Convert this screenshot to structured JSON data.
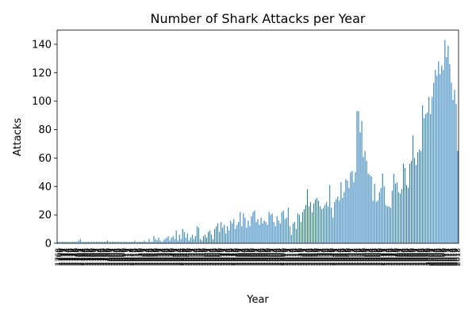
{
  "chart_data": {
    "type": "bar",
    "title": "Number of Shark Attacks per Year",
    "x_label": "Year",
    "y_label": "Attacks",
    "categories": [
      1768,
      1769,
      1770,
      1771,
      1772,
      1773,
      1774,
      1775,
      1776,
      1777,
      1778,
      1779,
      1780,
      1781,
      1782,
      1783,
      1784,
      1785,
      1786,
      1787,
      1788,
      1789,
      1790,
      1791,
      1792,
      1793,
      1794,
      1795,
      1796,
      1797,
      1798,
      1799,
      1800,
      1801,
      1802,
      1803,
      1804,
      1805,
      1806,
      1807,
      1808,
      1809,
      1810,
      1811,
      1812,
      1813,
      1814,
      1815,
      1816,
      1817,
      1818,
      1819,
      1820,
      1821,
      1822,
      1823,
      1824,
      1825,
      1826,
      1827,
      1828,
      1829,
      1830,
      1831,
      1832,
      1833,
      1834,
      1835,
      1836,
      1837,
      1838,
      1839,
      1840,
      1841,
      1842,
      1843,
      1844,
      1845,
      1846,
      1847,
      1848,
      1849,
      1850,
      1851,
      1852,
      1853,
      1854,
      1855,
      1856,
      1857,
      1858,
      1859,
      1860,
      1861,
      1862,
      1863,
      1864,
      1865,
      1866,
      1867,
      1868,
      1869,
      1870,
      1871,
      1872,
      1873,
      1874,
      1875,
      1876,
      1877,
      1878,
      1879,
      1880,
      1881,
      1882,
      1883,
      1884,
      1885,
      1886,
      1887,
      1888,
      1889,
      1890,
      1891,
      1892,
      1893,
      1894,
      1895,
      1896,
      1897,
      1898,
      1899,
      1900,
      1901,
      1902,
      1903,
      1904,
      1905,
      1906,
      1907,
      1908,
      1909,
      1910,
      1911,
      1912,
      1913,
      1914,
      1915,
      1916,
      1917,
      1918,
      1919,
      1920,
      1921,
      1922,
      1923,
      1924,
      1925,
      1926,
      1927,
      1928,
      1929,
      1930,
      1931,
      1932,
      1933,
      1934,
      1935,
      1936,
      1937,
      1938,
      1939,
      1940,
      1941,
      1942,
      1943,
      1944,
      1945,
      1946,
      1947,
      1948,
      1949,
      1950,
      1951,
      1952,
      1953,
      1954,
      1955,
      1956,
      1957,
      1958,
      1959,
      1960,
      1961,
      1962,
      1963,
      1964,
      1965,
      1966,
      1967,
      1968,
      1969,
      1970,
      1971,
      1972,
      1973,
      1974,
      1975,
      1976,
      1977,
      1978,
      1979,
      1980,
      1981,
      1982,
      1983,
      1984,
      1985,
      1986,
      1987,
      1988,
      1989,
      1990,
      1991,
      1992,
      1993,
      1994,
      1995,
      1996,
      1997,
      1998,
      1999,
      2000,
      2001,
      2002,
      2003,
      2004,
      2005,
      2006,
      2007,
      2008,
      2009,
      2010,
      2011,
      2012,
      2013,
      2014,
      2015,
      2016,
      2017,
      2018
    ],
    "values": [
      1,
      1,
      1,
      1,
      1,
      1,
      1,
      1,
      1,
      1,
      1,
      1,
      1,
      2,
      3,
      1,
      1,
      1,
      1,
      1,
      1,
      1,
      1,
      1,
      1,
      1,
      1,
      1,
      1,
      1,
      1,
      2,
      1,
      1,
      1,
      1,
      1,
      1,
      1,
      1,
      1,
      1,
      1,
      1,
      1,
      1,
      1,
      1,
      2,
      1,
      1,
      1,
      1,
      1,
      2,
      1,
      1,
      3,
      1,
      1,
      5,
      3,
      2,
      4,
      2,
      1,
      2,
      3,
      4,
      5,
      2,
      4,
      5,
      3,
      9,
      2,
      6,
      3,
      10,
      8,
      4,
      7,
      2,
      4,
      6,
      3,
      5,
      12,
      11,
      3,
      2,
      5,
      6,
      4,
      8,
      9,
      6,
      3,
      10,
      12,
      14,
      8,
      15,
      11,
      13,
      7,
      12,
      9,
      16,
      14,
      17,
      10,
      13,
      15,
      22,
      12,
      21,
      18,
      11,
      16,
      12,
      19,
      22,
      23,
      15,
      17,
      13,
      18,
      14,
      16,
      15,
      13,
      22,
      20,
      21,
      15,
      12,
      19,
      16,
      14,
      22,
      23,
      17,
      18,
      25,
      12,
      6,
      14,
      15,
      10,
      21,
      20,
      15,
      22,
      24,
      27,
      38,
      26,
      29,
      22,
      28,
      31,
      32,
      30,
      26,
      24,
      25,
      27,
      29,
      26,
      41,
      25,
      18,
      29,
      31,
      33,
      30,
      43,
      32,
      36,
      45,
      44,
      39,
      50,
      51,
      43,
      50,
      93,
      93,
      78,
      86,
      61,
      65,
      58,
      49,
      48,
      47,
      30,
      42,
      29,
      30,
      36,
      39,
      49,
      40,
      27,
      26,
      26,
      25,
      37,
      49,
      42,
      43,
      36,
      35,
      38,
      56,
      53,
      41,
      39,
      56,
      58,
      76,
      60,
      55,
      64,
      66,
      65,
      97,
      88,
      91,
      92,
      103,
      91,
      103,
      113,
      122,
      118,
      128,
      119,
      125,
      122,
      143,
      131,
      139,
      126,
      113,
      101,
      108,
      98,
      65
    ],
    "color": "#1f77b4",
    "ylim": [
      0,
      150
    ],
    "yticks": [
      0,
      20,
      40,
      60,
      80,
      100,
      120,
      140
    ]
  }
}
